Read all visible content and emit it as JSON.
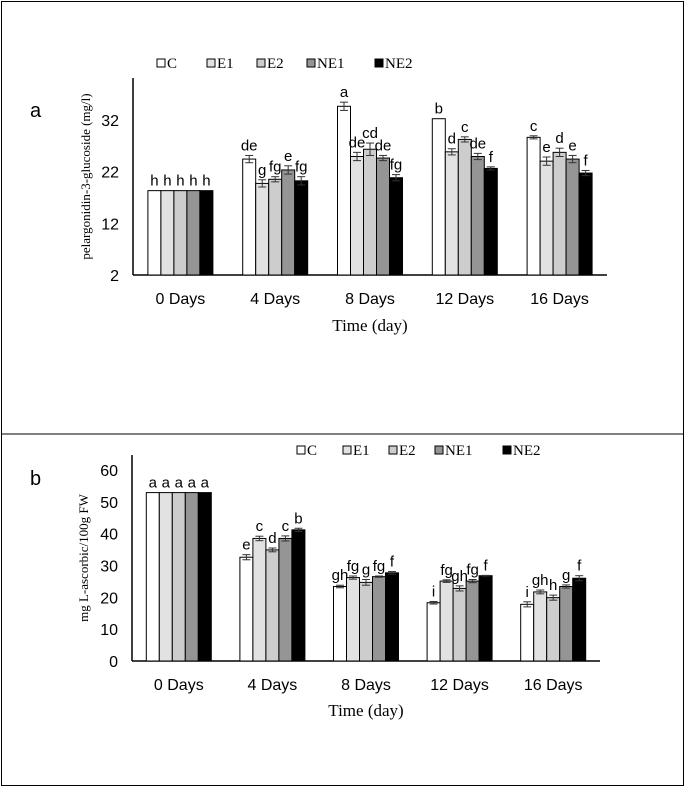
{
  "series_colors": {
    "C": "#ffffff",
    "E1": "#e2e2e2",
    "E2": "#cdcdcd",
    "NE1": "#959595",
    "NE2": "#000000"
  },
  "chart_data": [
    {
      "type": "bar",
      "panel_label": "a",
      "xlabel": "Time (day)",
      "ylabel": "pelargonidin-3-glucoside (mg/l)",
      "ylim": [
        2,
        42
      ],
      "yticks": [
        2,
        12,
        22,
        32
      ],
      "grid": false,
      "legend": "top",
      "categories": [
        "0 Days",
        "4 Days",
        "8 Days",
        "12 Days",
        "16 Days"
      ],
      "series": [
        {
          "name": "C",
          "values": [
            18.3,
            24.4,
            34.6,
            32.2,
            28.6
          ],
          "err": [
            0,
            0.7,
            0.8,
            0,
            0.3
          ],
          "letters": [
            "h",
            "de",
            "a",
            "b",
            "c"
          ]
        },
        {
          "name": "E1",
          "values": [
            18.3,
            19.7,
            24.9,
            25.8,
            24.0
          ],
          "err": [
            0,
            0.7,
            0.8,
            0.6,
            0.8
          ],
          "letters": [
            "h",
            "g",
            "de",
            "d",
            "e"
          ]
        },
        {
          "name": "E2",
          "values": [
            18.3,
            20.5,
            26.3,
            28.2,
            25.7
          ],
          "err": [
            0,
            0.5,
            1.2,
            0.5,
            0.8
          ],
          "letters": [
            "h",
            "fg",
            "cd",
            "c",
            "d"
          ]
        },
        {
          "name": "NE1",
          "values": [
            18.3,
            22.3,
            24.6,
            24.9,
            24.4
          ],
          "err": [
            0,
            0.8,
            0.5,
            0.6,
            0.7
          ],
          "letters": [
            "h",
            "e",
            "de",
            "de",
            "e"
          ]
        },
        {
          "name": "NE2",
          "values": [
            18.3,
            20.2,
            20.8,
            22.6,
            21.7
          ],
          "err": [
            0,
            0.8,
            0.6,
            0.3,
            0.5
          ],
          "letters": [
            "h",
            "fg",
            "fg",
            "f",
            "f"
          ]
        }
      ]
    },
    {
      "type": "bar",
      "panel_label": "b",
      "xlabel": "Time (day)",
      "ylabel": "mg L-ascorbic/100g FW",
      "ylim": [
        0,
        60
      ],
      "yticks": [
        0,
        10,
        20,
        30,
        40,
        50,
        60
      ],
      "grid": false,
      "legend": "top-right",
      "categories": [
        "0 Days",
        "4 Days",
        "8 Days",
        "12 Days",
        "16 Days"
      ],
      "series": [
        {
          "name": "C",
          "values": [
            52.9,
            32.6,
            23.4,
            18.3,
            17.8
          ],
          "err": [
            0,
            0.8,
            0.4,
            0.4,
            0.8
          ],
          "letters": [
            "a",
            "e",
            "gh",
            "i",
            "i"
          ]
        },
        {
          "name": "E1",
          "values": [
            52.9,
            38.5,
            26.2,
            25.1,
            21.7
          ],
          "err": [
            0,
            0.7,
            0.5,
            0.4,
            0.6
          ],
          "letters": [
            "a",
            "c",
            "fg",
            "fg",
            "gh"
          ]
        },
        {
          "name": "E2",
          "values": [
            52.9,
            34.9,
            24.7,
            22.8,
            19.9
          ],
          "err": [
            0,
            0.6,
            0.9,
            0.8,
            0.8
          ],
          "letters": [
            "a",
            "d",
            "g",
            "gh",
            "h"
          ]
        },
        {
          "name": "NE1",
          "values": [
            52.9,
            38.5,
            26.5,
            25.1,
            23.4
          ],
          "err": [
            0,
            0.8,
            0.2,
            0.5,
            0.5
          ],
          "letters": [
            "a",
            "c",
            "fg",
            "fg",
            "g"
          ]
        },
        {
          "name": "NE2",
          "values": [
            52.9,
            41.2,
            27.7,
            26.8,
            26.0
          ],
          "err": [
            0,
            0.5,
            0.4,
            0.1,
            0.8
          ],
          "letters": [
            "a",
            "b",
            "f",
            "f",
            "f"
          ]
        }
      ]
    }
  ]
}
